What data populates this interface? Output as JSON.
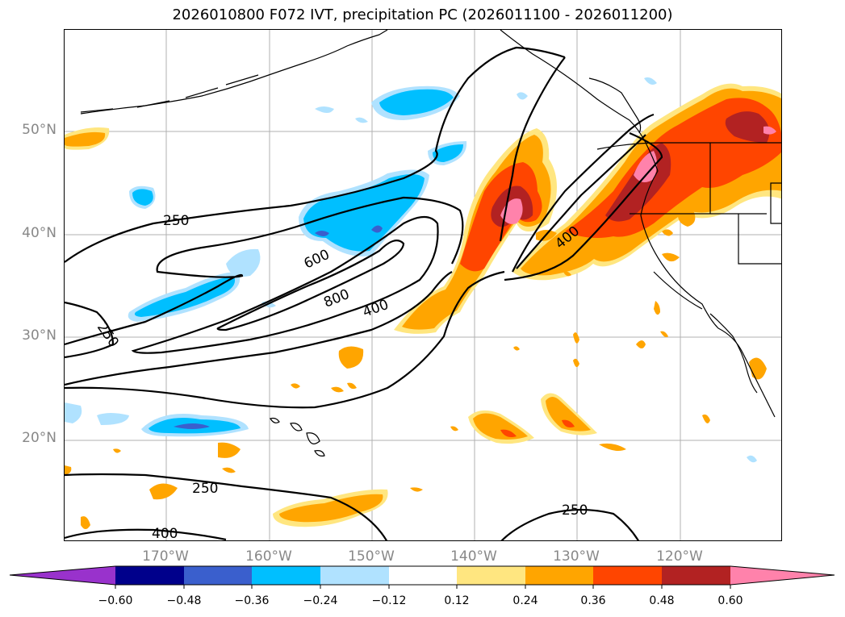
{
  "title": "2026010800 F072 IVT, precipitation PC (2026011100 - 2026011200)",
  "lat_labels": [
    "50°N",
    "40°N",
    "30°N",
    "20°N"
  ],
  "lon_labels": [
    "170°W",
    "160°W",
    "150°W",
    "140°W",
    "130°W",
    "120°W"
  ],
  "contour_labels": [
    "250",
    "250",
    "600",
    "800",
    "400",
    "400",
    "250",
    "400",
    "250"
  ],
  "colorbar": {
    "ticks": [
      "−0.60",
      "−0.48",
      "−0.36",
      "−0.24",
      "−0.12",
      "0.12",
      "0.24",
      "0.36",
      "0.48",
      "0.60"
    ],
    "colors": [
      "#9932cc",
      "#00008b",
      "#3a5fcd",
      "#00bfff",
      "#b0e2ff",
      "#ffffff",
      "#ffe680",
      "#ffa500",
      "#ff4500",
      "#b22222",
      "#ff82ab"
    ]
  },
  "chart_data": {
    "type": "heatmap",
    "title": "2026010800 F072 IVT, precipitation PC (2026011100 - 2026011200)",
    "x_ticks": [
      "170°W",
      "160°W",
      "150°W",
      "140°W",
      "130°W",
      "120°W"
    ],
    "y_ticks": [
      "50°N",
      "40°N",
      "30°N",
      "20°N"
    ],
    "xlim": [
      -180,
      -110
    ],
    "ylim": [
      10,
      60
    ],
    "grid": true,
    "ivt_contour_levels": [
      250,
      400,
      600,
      800
    ],
    "colorbar_levels": [
      -0.6,
      -0.48,
      -0.36,
      -0.24,
      -0.12,
      0.12,
      0.24,
      0.36,
      0.48,
      0.6
    ]
  }
}
